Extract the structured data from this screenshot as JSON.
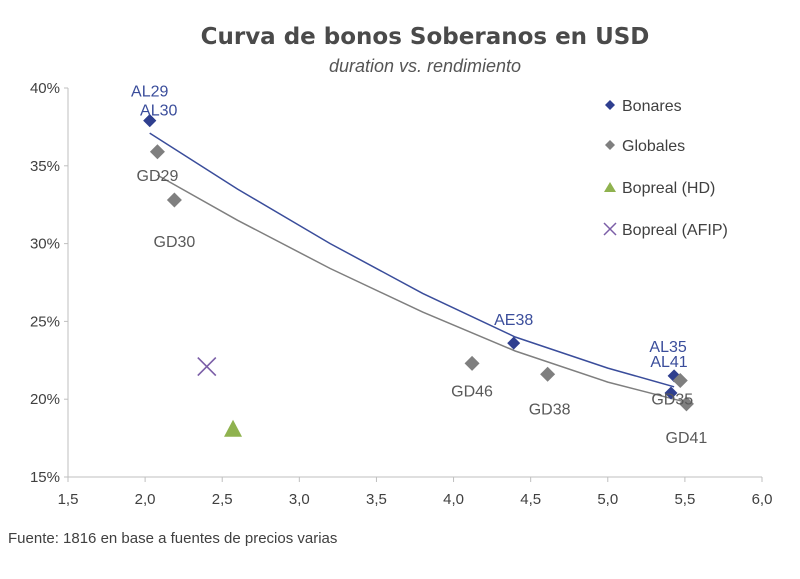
{
  "chart_data": {
    "type": "scatter",
    "title": "Curva de bonos Soberanos en USD",
    "subtitle": "duration vs. rendimiento",
    "xlim": [
      1.5,
      6.0
    ],
    "ylim": [
      15,
      40
    ],
    "x_ticks": [
      "1,5",
      "2,0",
      "2,5",
      "3,0",
      "3,5",
      "4,0",
      "4,5",
      "5,0",
      "5,5",
      "6,0"
    ],
    "y_ticks": [
      "15%",
      "20%",
      "25%",
      "30%",
      "35%",
      "40%"
    ],
    "x_tick_values": [
      1.5,
      2.0,
      2.5,
      3.0,
      3.5,
      4.0,
      4.5,
      5.0,
      5.5,
      6.0
    ],
    "y_tick_values": [
      15,
      20,
      25,
      30,
      35,
      40
    ],
    "series": [
      {
        "name": "Bonares",
        "marker": "diamond",
        "color": "#2f3f8f",
        "label_color": "#3a4d9b",
        "points": [
          {
            "label": "AL29",
            "x": 2.03,
            "y": 37.9
          },
          {
            "label": "AL30",
            "x": 2.03,
            "y": 37.9
          },
          {
            "label": "AE38",
            "x": 4.39,
            "y": 23.6
          },
          {
            "label": "AL35",
            "x": 5.43,
            "y": 21.5
          },
          {
            "label": "AL41",
            "x": 5.41,
            "y": 20.4
          }
        ]
      },
      {
        "name": "Globales",
        "marker": "diamond",
        "color": "#7f7f7f",
        "label_color": "#595959",
        "points": [
          {
            "label": "GD29",
            "x": 2.08,
            "y": 35.9
          },
          {
            "label": "GD30",
            "x": 2.19,
            "y": 32.8
          },
          {
            "label": "GD46",
            "x": 4.12,
            "y": 22.3
          },
          {
            "label": "GD38",
            "x": 4.61,
            "y": 21.6
          },
          {
            "label": "GD35",
            "x": 5.47,
            "y": 21.2
          },
          {
            "label": "GD41",
            "x": 5.51,
            "y": 19.7
          }
        ]
      },
      {
        "name": "Bopreal (HD)",
        "marker": "triangle",
        "color": "#8fb24f",
        "points": [
          {
            "x": 2.57,
            "y": 18.1
          }
        ]
      },
      {
        "name": "Bopreal (AFIP)",
        "marker": "x",
        "color": "#7b5ea7",
        "points": [
          {
            "x": 2.4,
            "y": 22.1
          }
        ]
      }
    ],
    "trendlines": [
      {
        "series": "Bonares",
        "color": "#3a4d9b",
        "x": [
          2.03,
          2.6,
          3.2,
          3.8,
          4.4,
          5.0,
          5.43
        ],
        "y": [
          37.1,
          33.5,
          30.0,
          26.8,
          24.0,
          22.0,
          20.8
        ]
      },
      {
        "series": "Globales",
        "color": "#7f7f7f",
        "x": [
          2.08,
          2.6,
          3.2,
          3.8,
          4.4,
          5.0,
          5.51
        ],
        "y": [
          34.4,
          31.5,
          28.4,
          25.6,
          23.1,
          21.1,
          19.8
        ]
      }
    ],
    "legend": "top-right"
  },
  "source": "Fuente: 1816 en base a fuentes de precios varias"
}
